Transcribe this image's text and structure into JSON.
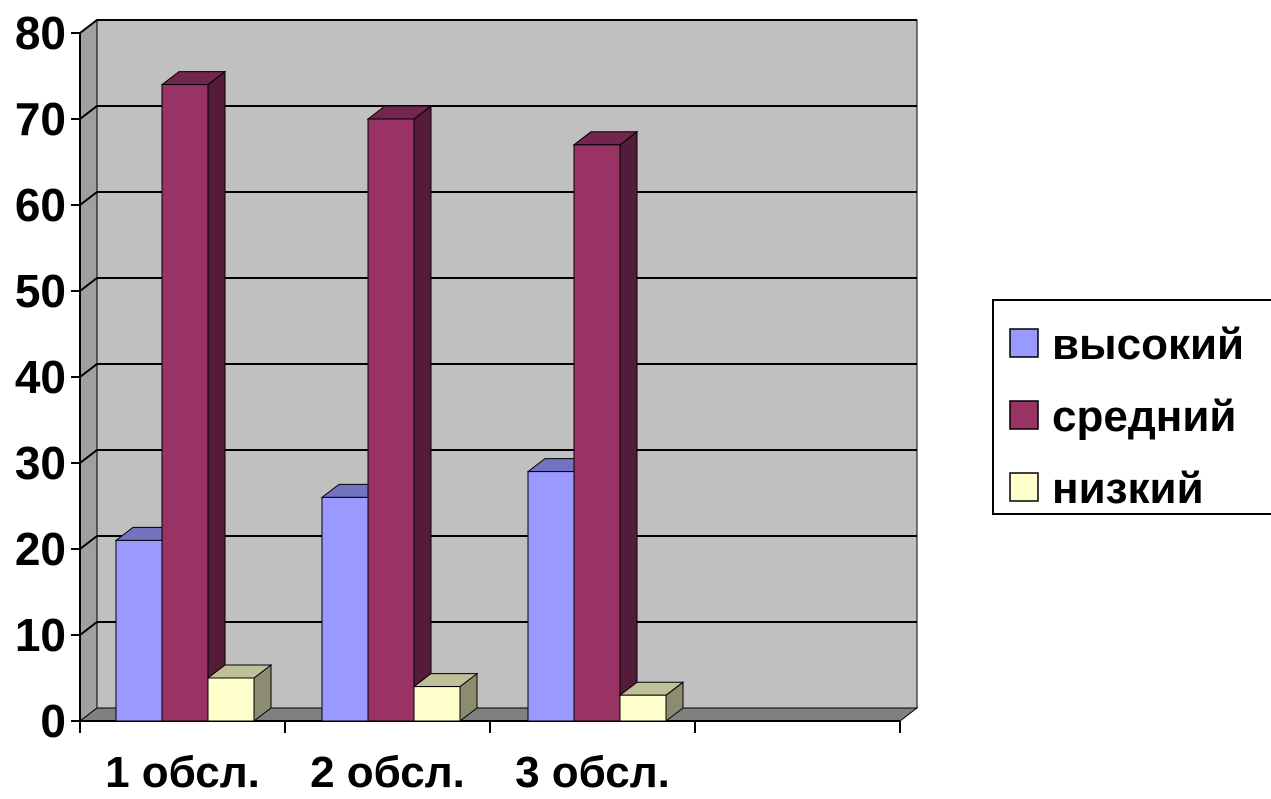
{
  "chart_data": {
    "type": "bar",
    "title": "",
    "xlabel": "",
    "ylabel": "",
    "categories": [
      "1 обсл.",
      "2 обсл.",
      "3 обсл.",
      ""
    ],
    "series": [
      {
        "name": "высокий",
        "values": [
          21,
          26,
          29,
          null
        ],
        "color": "#9999ff"
      },
      {
        "name": "средний",
        "values": [
          74,
          70,
          67,
          null
        ],
        "color": "#993366"
      },
      {
        "name": "низкий",
        "values": [
          5,
          4,
          3,
          null
        ],
        "color": "#ffffcc"
      }
    ],
    "ylim": [
      0,
      80
    ],
    "yticks": [
      0,
      10,
      20,
      30,
      40,
      50,
      60,
      70,
      80
    ],
    "grid": true,
    "legend_position": "right",
    "style": "3d-column",
    "wall_color": "#c0c0c0",
    "floor_color": "#808080"
  }
}
